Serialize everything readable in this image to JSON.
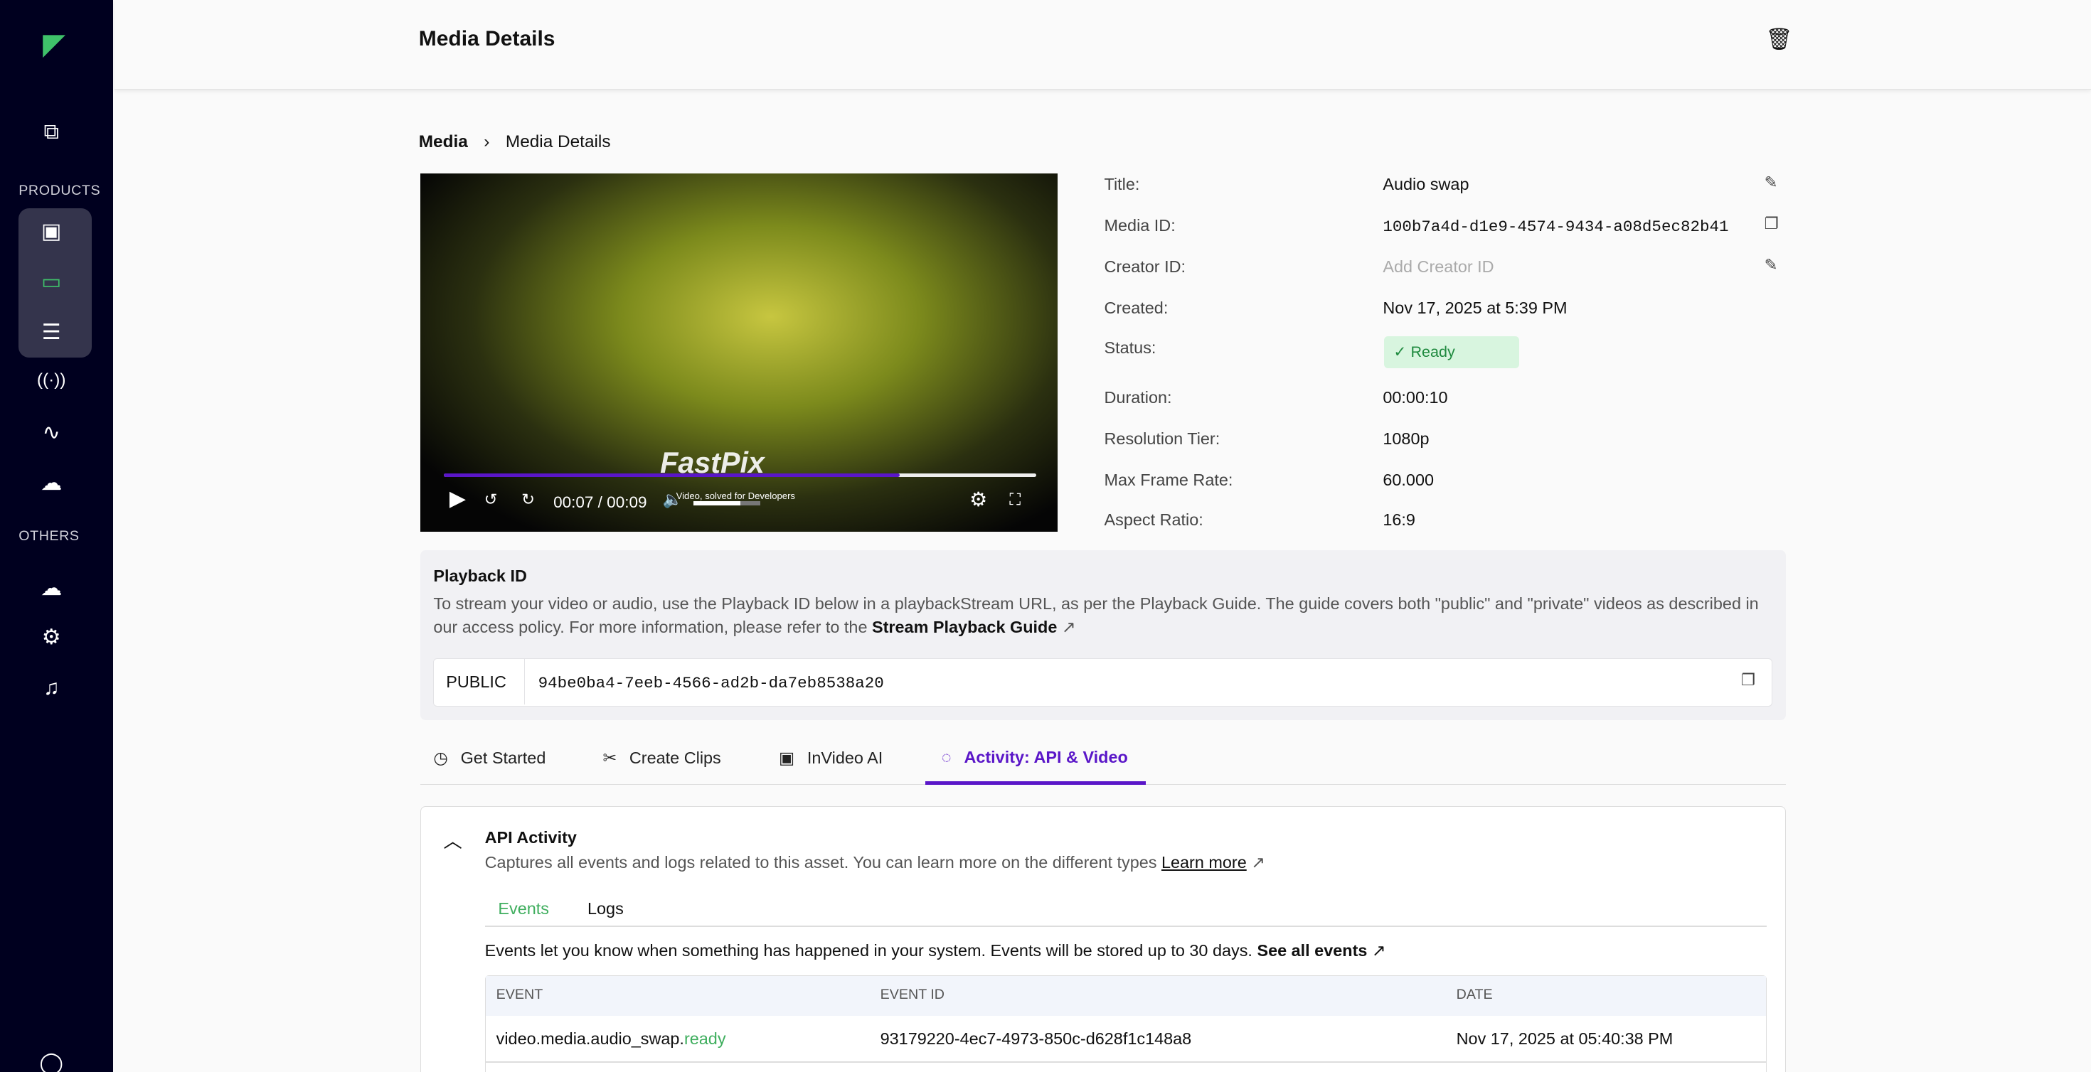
{
  "sidebar": {
    "products_label": "PRODUCTS",
    "others_label": "OTHERS",
    "active_color": "#3fc26a"
  },
  "header": {
    "title": "Media Details"
  },
  "breadcrumb": {
    "root": "Media",
    "current": "Media Details"
  },
  "player": {
    "time": "00:07 / 00:09",
    "progress_percent": 77,
    "volume_percent": 70,
    "brand": "FastPix",
    "brand_tagline": "Video, solved for Developers"
  },
  "details": [
    {
      "label": "Title:",
      "value": "Audio swap"
    },
    {
      "label": "Media ID:",
      "value": "100b7a4d-d1e9-4574-9434-a08d5ec82b41"
    },
    {
      "label": "Creator ID:",
      "placeholder": "Add Creator ID"
    },
    {
      "label": "Created:",
      "value": "Nov 17, 2025 at 5:39 PM"
    },
    {
      "label": "Status:",
      "value": "Ready"
    },
    {
      "label": "Duration:",
      "value": "00:00:10"
    },
    {
      "label": "Resolution Tier:",
      "value": "1080p"
    },
    {
      "label": "Max Frame Rate:",
      "value": "60.000"
    },
    {
      "label": "Aspect Ratio:",
      "value": "16:9"
    }
  ],
  "playback": {
    "title": "Playback ID",
    "desc": "To stream your video or audio, use the Playback ID below in a playbackStream URL, as per the Playback Guide. The guide covers both \"public\" and \"private\" videos as described in our access policy. For more information, please refer to the ",
    "link": "Stream Playback Guide",
    "policy": "PUBLIC",
    "id": "94be0ba4-7eeb-4566-ad2b-da7eb8538a20"
  },
  "tabs": [
    "Get Started",
    "Create Clips",
    "InVideo AI",
    "Activity: API & Video"
  ],
  "api": {
    "title": "API Activity",
    "desc": "Captures all events and logs related to this asset. You can learn more on the different types ",
    "learn": "Learn more",
    "subtabs": [
      "Events",
      "Logs"
    ],
    "events_desc": "Events let you know when something has happened in your system. Events will be stored up to 30 days. ",
    "see_all": "See all events",
    "columns": [
      "EVENT",
      "EVENT ID",
      "DATE"
    ],
    "rows": [
      {
        "event": "video.media.audio_swap.",
        "event_status": "ready",
        "id": "93179220-4ec7-4973-850c-d628f1c148a8",
        "date": "Nov 17, 2025 at 05:40:38 PM"
      }
    ]
  }
}
